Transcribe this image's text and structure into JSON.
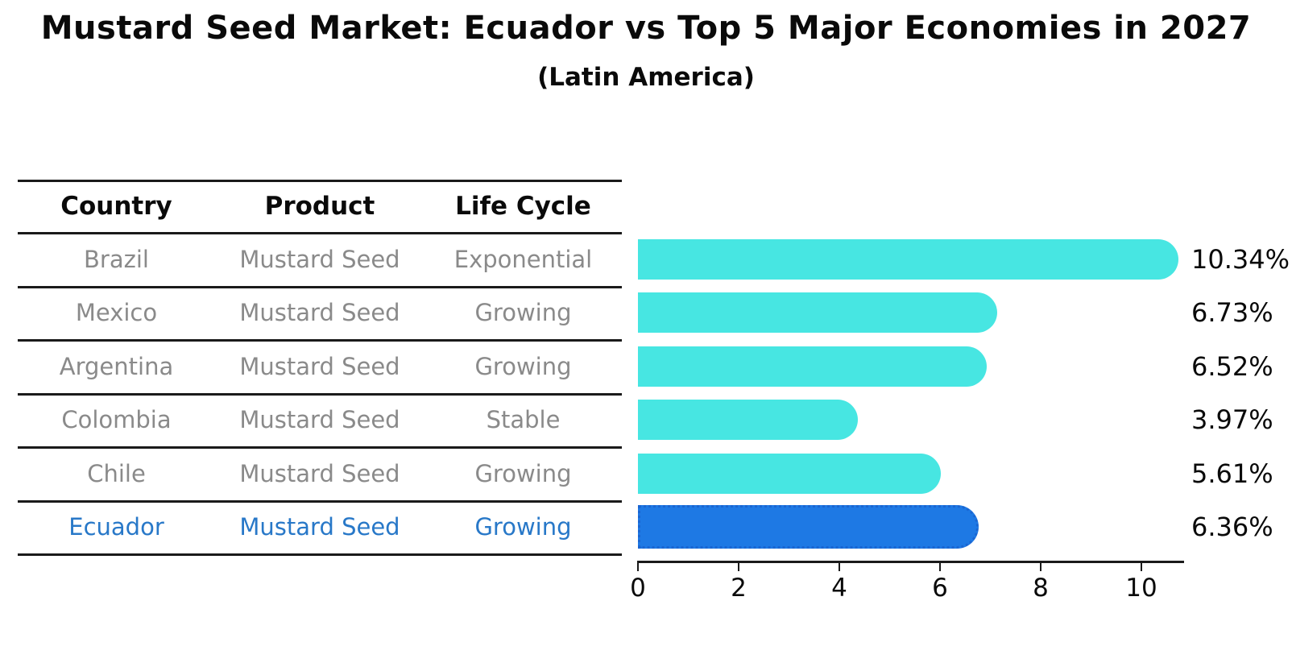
{
  "title": "Mustard Seed Market: Ecuador vs Top 5 Major Economies in 2027",
  "subtitle": "(Latin America)",
  "table": {
    "headers": [
      "Country",
      "Product",
      "Life Cycle"
    ],
    "rows": [
      {
        "country": "Brazil",
        "product": "Mustard Seed",
        "life_cycle": "Exponential",
        "highlight": false
      },
      {
        "country": "Mexico",
        "product": "Mustard Seed",
        "life_cycle": "Growing",
        "highlight": false
      },
      {
        "country": "Argentina",
        "product": "Mustard Seed",
        "life_cycle": "Growing",
        "highlight": false
      },
      {
        "country": "Colombia",
        "product": "Mustard Seed",
        "life_cycle": "Stable",
        "highlight": false
      },
      {
        "country": "Chile",
        "product": "Mustard Seed",
        "life_cycle": "Growing",
        "highlight": false
      },
      {
        "country": "Ecuador",
        "product": "Mustard Seed",
        "life_cycle": "Growing",
        "highlight": true
      }
    ]
  },
  "chart_data": {
    "type": "bar",
    "orientation": "horizontal",
    "title": "Mustard Seed Market: Ecuador vs Top 5 Major Economies in 2027",
    "subtitle": "(Latin America)",
    "categories": [
      "Brazil",
      "Mexico",
      "Argentina",
      "Colombia",
      "Chile",
      "Ecuador"
    ],
    "values": [
      10.34,
      6.73,
      6.52,
      3.97,
      5.61,
      6.36
    ],
    "value_labels": [
      "10.34%",
      "6.73%",
      "6.52%",
      "3.97%",
      "5.61%",
      "6.36%"
    ],
    "unit": "%",
    "x_ticks": [
      0,
      2,
      4,
      6,
      8,
      10
    ],
    "xlim": [
      0,
      10.9
    ],
    "grid": false,
    "legend": "none",
    "highlight_index": 5,
    "highlight_category": "Ecuador"
  },
  "colors": {
    "bar": "#47E6E2",
    "highlight_bar": "#1E79E4",
    "highlight_bar_border": "#1A66D2",
    "highlight_text": "#2878C8",
    "row_text": "#8A8A8A",
    "text": "#0A0A0A",
    "line": "#1A1A1A"
  }
}
